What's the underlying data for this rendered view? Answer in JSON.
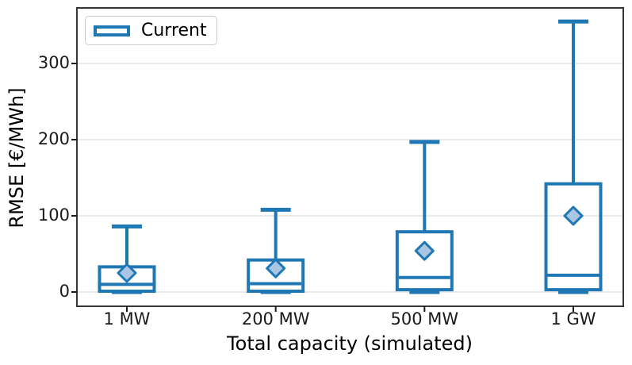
{
  "chart_data": {
    "type": "box",
    "title": "",
    "xlabel": "Total capacity (simulated)",
    "ylabel": "RMSE [€/MWh]",
    "categories": [
      "1 MW",
      "200 MW",
      "500 MW",
      "1 GW"
    ],
    "legend": [
      {
        "label": "Current",
        "color": "#1f77b4"
      }
    ],
    "yticks": [
      0,
      100,
      200,
      300
    ],
    "ylim": [
      -18.75,
      372.9
    ],
    "grid": "horizontal",
    "legend_position": "upper left",
    "series": [
      {
        "name": "Current",
        "boxes": [
          {
            "category": "1 MW",
            "whisker_low": 0,
            "q1": 1,
            "median": 10,
            "q3": 33,
            "whisker_high": 86,
            "mean": 25
          },
          {
            "category": "200 MW",
            "whisker_low": 0,
            "q1": 1,
            "median": 11,
            "q3": 42,
            "whisker_high": 108,
            "mean": 31
          },
          {
            "category": "500 MW",
            "whisker_low": 0,
            "q1": 3,
            "median": 19,
            "q3": 79,
            "whisker_high": 197,
            "mean": 54
          },
          {
            "category": "1 GW",
            "whisker_low": 0,
            "q1": 3,
            "median": 22,
            "q3": 142,
            "whisker_high": 355,
            "mean": 100
          }
        ]
      }
    ],
    "colors": {
      "box": "#1f77b4",
      "mean_fill": "#a9c6e2",
      "mean_edge": "#1f77b4",
      "grid": "#e2e2e2",
      "spine": "#363636",
      "tick": "#1a1a1a",
      "text": "#000000",
      "background": "#ffffff",
      "legend_border": "#cccccc"
    }
  }
}
